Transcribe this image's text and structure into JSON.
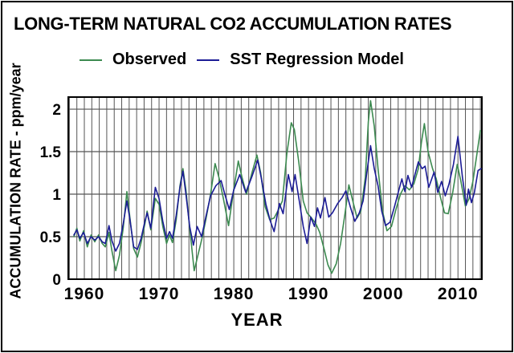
{
  "title": "LONG-TERM NATURAL CO2 ACCUMULATION RATES",
  "legend": {
    "observed_label": "Observed",
    "model_label": "SST Regression Model"
  },
  "axes": {
    "x_label": "YEAR",
    "y_label": "ACCUMULATION RATE - ppm/year",
    "x_ticks": [
      "1960",
      "1970",
      "1980",
      "1990",
      "2000",
      "2010"
    ],
    "y_ticks": [
      "0",
      "0.5",
      "1",
      "1.5",
      "2"
    ]
  },
  "colors": {
    "observed": "#3c8a50",
    "model": "#1c1c96",
    "grid": "#555555",
    "frame": "#000000",
    "background": "#ffffff",
    "text": "#000000"
  },
  "chart_data": {
    "type": "line",
    "title": "LONG-TERM NATURAL CO2 ACCUMULATION RATES",
    "xlabel": "YEAR",
    "ylabel": "ACCUMULATION RATE - ppm/year",
    "xlim": [
      1957.85,
      2013.2
    ],
    "ylim": [
      0,
      2.142
    ],
    "x_tick_values": [
      1960,
      1970,
      1980,
      1990,
      2000,
      2010
    ],
    "y_tick_values": [
      0,
      0.5,
      1,
      1.5,
      2
    ],
    "grid": "vertical gridline every year; horizontal gridlines every 0.5",
    "legend_position": "top",
    "series": [
      {
        "name": "Observed",
        "color": "#3c8a50",
        "points": [
          [
            1958.6,
            0.5
          ],
          [
            1959.0,
            0.6
          ],
          [
            1959.4,
            0.45
          ],
          [
            1959.9,
            0.57
          ],
          [
            1960.4,
            0.38
          ],
          [
            1960.9,
            0.52
          ],
          [
            1961.4,
            0.44
          ],
          [
            1961.9,
            0.52
          ],
          [
            1962.4,
            0.42
          ],
          [
            1962.8,
            0.38
          ],
          [
            1963.3,
            0.55
          ],
          [
            1963.7,
            0.33
          ],
          [
            1964.2,
            0.1
          ],
          [
            1964.7,
            0.28
          ],
          [
            1965.2,
            0.6
          ],
          [
            1965.7,
            1.03
          ],
          [
            1966.1,
            0.72
          ],
          [
            1966.6,
            0.36
          ],
          [
            1967.1,
            0.26
          ],
          [
            1967.6,
            0.43
          ],
          [
            1968.1,
            0.65
          ],
          [
            1968.4,
            0.8
          ],
          [
            1968.9,
            0.58
          ],
          [
            1969.5,
            0.95
          ],
          [
            1970.0,
            0.88
          ],
          [
            1970.5,
            0.62
          ],
          [
            1971.0,
            0.42
          ],
          [
            1971.4,
            0.52
          ],
          [
            1971.8,
            0.43
          ],
          [
            1972.3,
            0.7
          ],
          [
            1972.8,
            1.1
          ],
          [
            1973.2,
            1.3
          ],
          [
            1973.6,
            1.05
          ],
          [
            1974.1,
            0.6
          ],
          [
            1974.7,
            0.1
          ],
          [
            1975.2,
            0.28
          ],
          [
            1975.8,
            0.5
          ],
          [
            1976.3,
            0.72
          ],
          [
            1976.9,
            1.0
          ],
          [
            1977.5,
            1.36
          ],
          [
            1978.0,
            1.2
          ],
          [
            1978.6,
            0.95
          ],
          [
            1979.3,
            0.63
          ],
          [
            1979.9,
            1.0
          ],
          [
            1980.6,
            1.39
          ],
          [
            1981.1,
            1.2
          ],
          [
            1981.7,
            1.0
          ],
          [
            1982.4,
            1.24
          ],
          [
            1983.1,
            1.46
          ],
          [
            1983.6,
            1.25
          ],
          [
            1984.2,
            0.85
          ],
          [
            1984.8,
            0.7
          ],
          [
            1985.4,
            0.72
          ],
          [
            1986.0,
            0.82
          ],
          [
            1986.5,
            0.92
          ],
          [
            1987.1,
            1.48
          ],
          [
            1987.7,
            1.84
          ],
          [
            1988.1,
            1.76
          ],
          [
            1988.7,
            1.38
          ],
          [
            1989.3,
            0.92
          ],
          [
            1989.8,
            0.78
          ],
          [
            1990.4,
            0.72
          ],
          [
            1991.0,
            0.65
          ],
          [
            1991.5,
            0.55
          ],
          [
            1992.1,
            0.35
          ],
          [
            1992.6,
            0.17
          ],
          [
            1993.1,
            0.07
          ],
          [
            1993.7,
            0.18
          ],
          [
            1994.3,
            0.42
          ],
          [
            1994.9,
            0.78
          ],
          [
            1995.4,
            1.11
          ],
          [
            1995.9,
            0.93
          ],
          [
            1996.5,
            0.72
          ],
          [
            1997.0,
            0.8
          ],
          [
            1997.6,
            1.2
          ],
          [
            1998.0,
            1.85
          ],
          [
            1998.3,
            2.1
          ],
          [
            1998.8,
            1.8
          ],
          [
            1999.3,
            1.3
          ],
          [
            1999.9,
            0.8
          ],
          [
            2000.5,
            0.57
          ],
          [
            2001.1,
            0.62
          ],
          [
            2001.7,
            0.82
          ],
          [
            2002.3,
            1.0
          ],
          [
            2002.9,
            1.1
          ],
          [
            2003.5,
            1.05
          ],
          [
            2004.1,
            1.12
          ],
          [
            2004.7,
            1.3
          ],
          [
            2005.1,
            1.6
          ],
          [
            2005.5,
            1.83
          ],
          [
            2006.0,
            1.5
          ],
          [
            2006.6,
            1.3
          ],
          [
            2007.1,
            1.18
          ],
          [
            2007.7,
            0.95
          ],
          [
            2008.2,
            0.78
          ],
          [
            2008.7,
            0.77
          ],
          [
            2009.3,
            1.02
          ],
          [
            2009.9,
            1.35
          ],
          [
            2010.4,
            1.15
          ],
          [
            2011.0,
            0.86
          ],
          [
            2011.5,
            0.95
          ],
          [
            2012.0,
            1.15
          ],
          [
            2012.5,
            1.45
          ],
          [
            2013.0,
            1.75
          ]
        ]
      },
      {
        "name": "SST Regression Model",
        "color": "#1c1c96",
        "points": [
          [
            1958.6,
            0.52
          ],
          [
            1959.0,
            0.58
          ],
          [
            1959.4,
            0.48
          ],
          [
            1959.9,
            0.55
          ],
          [
            1960.4,
            0.42
          ],
          [
            1960.9,
            0.5
          ],
          [
            1961.4,
            0.46
          ],
          [
            1961.9,
            0.5
          ],
          [
            1962.4,
            0.44
          ],
          [
            1962.8,
            0.42
          ],
          [
            1963.3,
            0.63
          ],
          [
            1963.7,
            0.45
          ],
          [
            1964.2,
            0.33
          ],
          [
            1964.7,
            0.42
          ],
          [
            1965.2,
            0.65
          ],
          [
            1965.7,
            0.92
          ],
          [
            1966.1,
            0.7
          ],
          [
            1966.6,
            0.38
          ],
          [
            1967.1,
            0.35
          ],
          [
            1967.6,
            0.48
          ],
          [
            1968.1,
            0.68
          ],
          [
            1968.4,
            0.78
          ],
          [
            1968.9,
            0.6
          ],
          [
            1969.5,
            1.08
          ],
          [
            1970.0,
            0.95
          ],
          [
            1970.5,
            0.68
          ],
          [
            1971.0,
            0.48
          ],
          [
            1971.4,
            0.56
          ],
          [
            1971.8,
            0.48
          ],
          [
            1972.3,
            0.75
          ],
          [
            1972.8,
            1.08
          ],
          [
            1973.2,
            1.27
          ],
          [
            1973.6,
            1.0
          ],
          [
            1974.1,
            0.62
          ],
          [
            1974.6,
            0.4
          ],
          [
            1975.1,
            0.62
          ],
          [
            1975.7,
            0.5
          ],
          [
            1976.3,
            0.75
          ],
          [
            1976.9,
            0.98
          ],
          [
            1977.6,
            1.1
          ],
          [
            1978.3,
            1.16
          ],
          [
            1978.8,
            1.0
          ],
          [
            1979.4,
            0.82
          ],
          [
            1980.0,
            1.05
          ],
          [
            1980.8,
            1.23
          ],
          [
            1981.6,
            1.02
          ],
          [
            1982.4,
            1.2
          ],
          [
            1983.2,
            1.4
          ],
          [
            1983.7,
            1.18
          ],
          [
            1984.3,
            0.88
          ],
          [
            1984.9,
            0.68
          ],
          [
            1985.4,
            0.56
          ],
          [
            1986.1,
            0.89
          ],
          [
            1986.6,
            0.77
          ],
          [
            1987.3,
            1.23
          ],
          [
            1987.8,
            1.03
          ],
          [
            1988.2,
            1.23
          ],
          [
            1988.8,
            0.9
          ],
          [
            1989.3,
            0.62
          ],
          [
            1989.8,
            0.42
          ],
          [
            1990.3,
            0.73
          ],
          [
            1990.8,
            0.62
          ],
          [
            1991.2,
            0.84
          ],
          [
            1991.6,
            0.72
          ],
          [
            1992.2,
            0.96
          ],
          [
            1992.7,
            0.73
          ],
          [
            1993.2,
            0.78
          ],
          [
            1993.9,
            0.89
          ],
          [
            1994.5,
            0.96
          ],
          [
            1995.0,
            1.04
          ],
          [
            1995.6,
            0.85
          ],
          [
            1996.2,
            0.68
          ],
          [
            1996.8,
            0.78
          ],
          [
            1997.3,
            0.92
          ],
          [
            1997.8,
            1.25
          ],
          [
            1998.3,
            1.57
          ],
          [
            1998.8,
            1.3
          ],
          [
            1999.3,
            1.1
          ],
          [
            1999.8,
            0.8
          ],
          [
            2000.3,
            0.63
          ],
          [
            2000.9,
            0.67
          ],
          [
            2001.5,
            0.85
          ],
          [
            2002.1,
            1.05
          ],
          [
            2002.5,
            1.18
          ],
          [
            2002.9,
            1.03
          ],
          [
            2003.3,
            1.22
          ],
          [
            2003.8,
            1.08
          ],
          [
            2004.3,
            1.25
          ],
          [
            2004.7,
            1.38
          ],
          [
            2005.2,
            1.3
          ],
          [
            2005.6,
            1.33
          ],
          [
            2006.1,
            1.08
          ],
          [
            2006.8,
            1.26
          ],
          [
            2007.3,
            1.02
          ],
          [
            2007.8,
            1.15
          ],
          [
            2008.3,
            0.98
          ],
          [
            2008.8,
            1.12
          ],
          [
            2009.4,
            1.35
          ],
          [
            2010.0,
            1.68
          ],
          [
            2010.6,
            1.2
          ],
          [
            2011.1,
            0.87
          ],
          [
            2011.4,
            1.06
          ],
          [
            2011.8,
            0.9
          ],
          [
            2012.2,
            1.02
          ],
          [
            2012.7,
            1.28
          ],
          [
            2013.1,
            1.3
          ]
        ]
      }
    ]
  }
}
